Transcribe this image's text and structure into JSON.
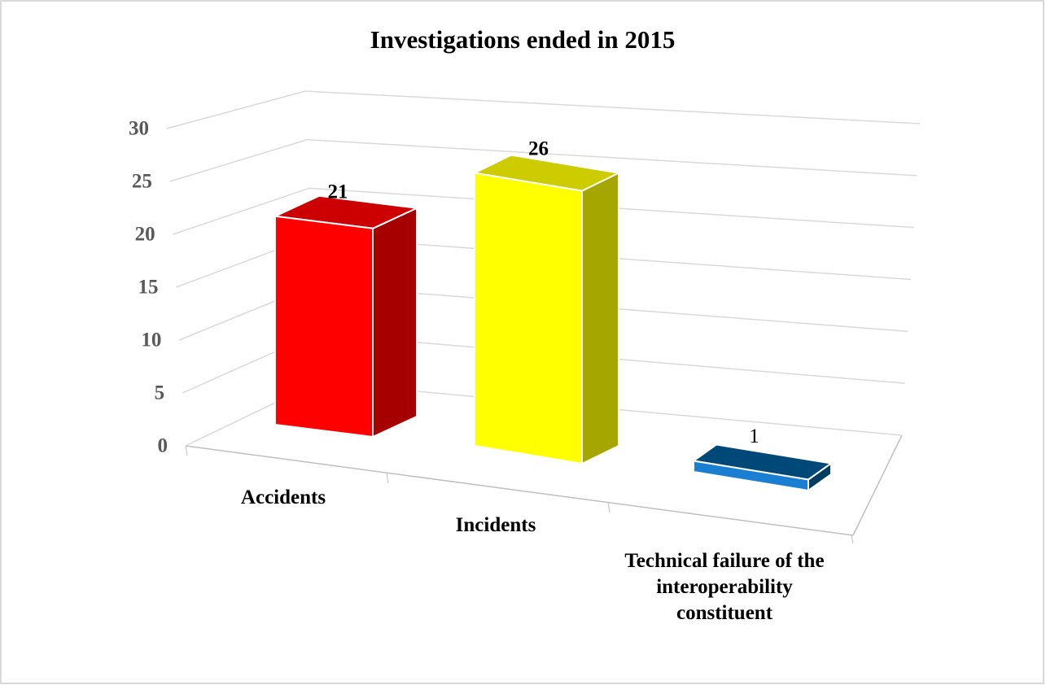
{
  "chart_data": {
    "type": "bar3d",
    "title": "Investigations ended in 2015",
    "categories": [
      "Accidents",
      "Incidents",
      "Technical failure of the interoperability constituent"
    ],
    "values": [
      21,
      26,
      1
    ],
    "colors": [
      "#ff0000",
      "#ffff00",
      "#005a96"
    ],
    "ylim": [
      0,
      30
    ],
    "yticks": [
      0,
      5,
      10,
      15,
      20,
      25,
      30
    ],
    "grid": true
  }
}
